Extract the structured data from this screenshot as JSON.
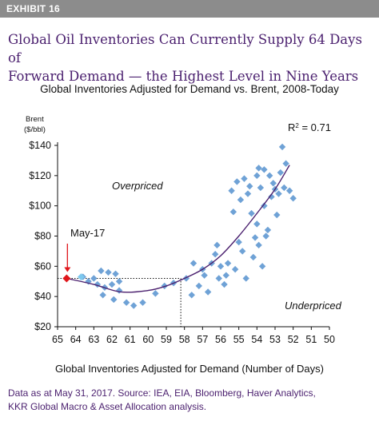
{
  "exhibit": {
    "label": "EXHIBIT 16"
  },
  "headline": {
    "line1": "Global Oil Inventories Can Currently Supply 64 Days of",
    "line2": "Forward Demand — the Highest Level in Nine Years"
  },
  "source": {
    "line1": "Data as at May 31, 2017. Source: IEA, EIA, Bloomberg, Haver Analytics,",
    "line2": "KKR Global Macro & Asset Allocation analysis."
  },
  "colors": {
    "headline": "#4a1f6e",
    "points": "#6fa2d6",
    "trend": "#4a1f6e",
    "latest": "#e0161b",
    "banner": "#8c8c8c"
  },
  "chart_data": {
    "type": "scatter",
    "title": "Global Inventories Adjusted for Demand vs. Brent, 2008-Today",
    "xlabel": "Global Inventories Adjusted for Demand (Number of Days)",
    "ylabel_line1": "Brent",
    "ylabel_line2": "($/bbl)",
    "x_reversed": true,
    "xlim": [
      50,
      65
    ],
    "ylim": [
      20,
      140
    ],
    "x_ticks": [
      65,
      64,
      63,
      62,
      61,
      60,
      59,
      58,
      57,
      56,
      55,
      54,
      53,
      52,
      51,
      50
    ],
    "y_ticks": [
      20,
      40,
      60,
      80,
      100,
      120,
      140
    ],
    "y_tick_labels": [
      "$20",
      "$40",
      "$60",
      "$80",
      "$100",
      "$120",
      "$140"
    ],
    "r_squared_base": "R",
    "r_squared_exp": "2",
    "r_squared_value": " = 0.71",
    "annotations": {
      "overpriced": "Overpriced",
      "underpriced": "Underpriced",
      "latest": "May-17"
    },
    "reference_lines": {
      "y": 52,
      "x": 58.2
    },
    "trend": [
      {
        "x": 64.5,
        "y": 52
      },
      {
        "x": 63,
        "y": 48
      },
      {
        "x": 61.5,
        "y": 43
      },
      {
        "x": 60,
        "y": 44
      },
      {
        "x": 59,
        "y": 47
      },
      {
        "x": 58,
        "y": 52
      },
      {
        "x": 57,
        "y": 58
      },
      {
        "x": 56,
        "y": 67
      },
      {
        "x": 55,
        "y": 80
      },
      {
        "x": 54,
        "y": 95
      },
      {
        "x": 53,
        "y": 111
      },
      {
        "x": 52.2,
        "y": 127
      }
    ],
    "latest_point": {
      "x": 64.5,
      "y": 52
    },
    "recent_point": {
      "x": 63.7,
      "y": 53
    },
    "points": [
      {
        "x": 63.6,
        "y": 53
      },
      {
        "x": 63.3,
        "y": 50
      },
      {
        "x": 63.0,
        "y": 52
      },
      {
        "x": 62.8,
        "y": 48
      },
      {
        "x": 62.6,
        "y": 57
      },
      {
        "x": 62.4,
        "y": 46
      },
      {
        "x": 62.2,
        "y": 56
      },
      {
        "x": 62.0,
        "y": 48
      },
      {
        "x": 61.8,
        "y": 55
      },
      {
        "x": 61.6,
        "y": 50
      },
      {
        "x": 62.5,
        "y": 41
      },
      {
        "x": 61.9,
        "y": 38
      },
      {
        "x": 61.6,
        "y": 44
      },
      {
        "x": 61.2,
        "y": 36
      },
      {
        "x": 60.8,
        "y": 34
      },
      {
        "x": 60.3,
        "y": 36
      },
      {
        "x": 59.6,
        "y": 42
      },
      {
        "x": 59.1,
        "y": 47
      },
      {
        "x": 58.6,
        "y": 49
      },
      {
        "x": 57.9,
        "y": 52
      },
      {
        "x": 57.6,
        "y": 41
      },
      {
        "x": 57.5,
        "y": 62
      },
      {
        "x": 57.2,
        "y": 47
      },
      {
        "x": 56.9,
        "y": 54
      },
      {
        "x": 56.7,
        "y": 43
      },
      {
        "x": 56.5,
        "y": 62
      },
      {
        "x": 56.3,
        "y": 68
      },
      {
        "x": 56.0,
        "y": 60
      },
      {
        "x": 55.8,
        "y": 48
      },
      {
        "x": 55.6,
        "y": 62
      },
      {
        "x": 55.2,
        "y": 58
      },
      {
        "x": 55.0,
        "y": 76
      },
      {
        "x": 54.9,
        "y": 104
      },
      {
        "x": 54.7,
        "y": 118
      },
      {
        "x": 54.5,
        "y": 108
      },
      {
        "x": 54.3,
        "y": 95
      },
      {
        "x": 54.2,
        "y": 66
      },
      {
        "x": 54.0,
        "y": 88
      },
      {
        "x": 53.9,
        "y": 125
      },
      {
        "x": 53.8,
        "y": 112
      },
      {
        "x": 53.6,
        "y": 100
      },
      {
        "x": 53.5,
        "y": 80
      },
      {
        "x": 53.3,
        "y": 120
      },
      {
        "x": 53.2,
        "y": 106
      },
      {
        "x": 53.0,
        "y": 111
      },
      {
        "x": 52.9,
        "y": 94
      },
      {
        "x": 52.7,
        "y": 122
      },
      {
        "x": 52.6,
        "y": 139
      },
      {
        "x": 52.4,
        "y": 128
      },
      {
        "x": 52.2,
        "y": 110
      },
      {
        "x": 52.0,
        "y": 105
      },
      {
        "x": 54.6,
        "y": 52
      },
      {
        "x": 54.8,
        "y": 70
      },
      {
        "x": 53.7,
        "y": 60
      },
      {
        "x": 53.4,
        "y": 84
      },
      {
        "x": 55.4,
        "y": 110
      },
      {
        "x": 55.1,
        "y": 116
      },
      {
        "x": 55.3,
        "y": 96
      },
      {
        "x": 54.4,
        "y": 113
      },
      {
        "x": 53.1,
        "y": 115
      },
      {
        "x": 52.8,
        "y": 108
      },
      {
        "x": 52.5,
        "y": 112
      },
      {
        "x": 53.9,
        "y": 74
      },
      {
        "x": 54.1,
        "y": 79
      },
      {
        "x": 56.2,
        "y": 74
      },
      {
        "x": 55.7,
        "y": 54
      },
      {
        "x": 57.0,
        "y": 58
      },
      {
        "x": 56.1,
        "y": 52
      },
      {
        "x": 54.0,
        "y": 120
      },
      {
        "x": 53.6,
        "y": 124
      }
    ]
  }
}
